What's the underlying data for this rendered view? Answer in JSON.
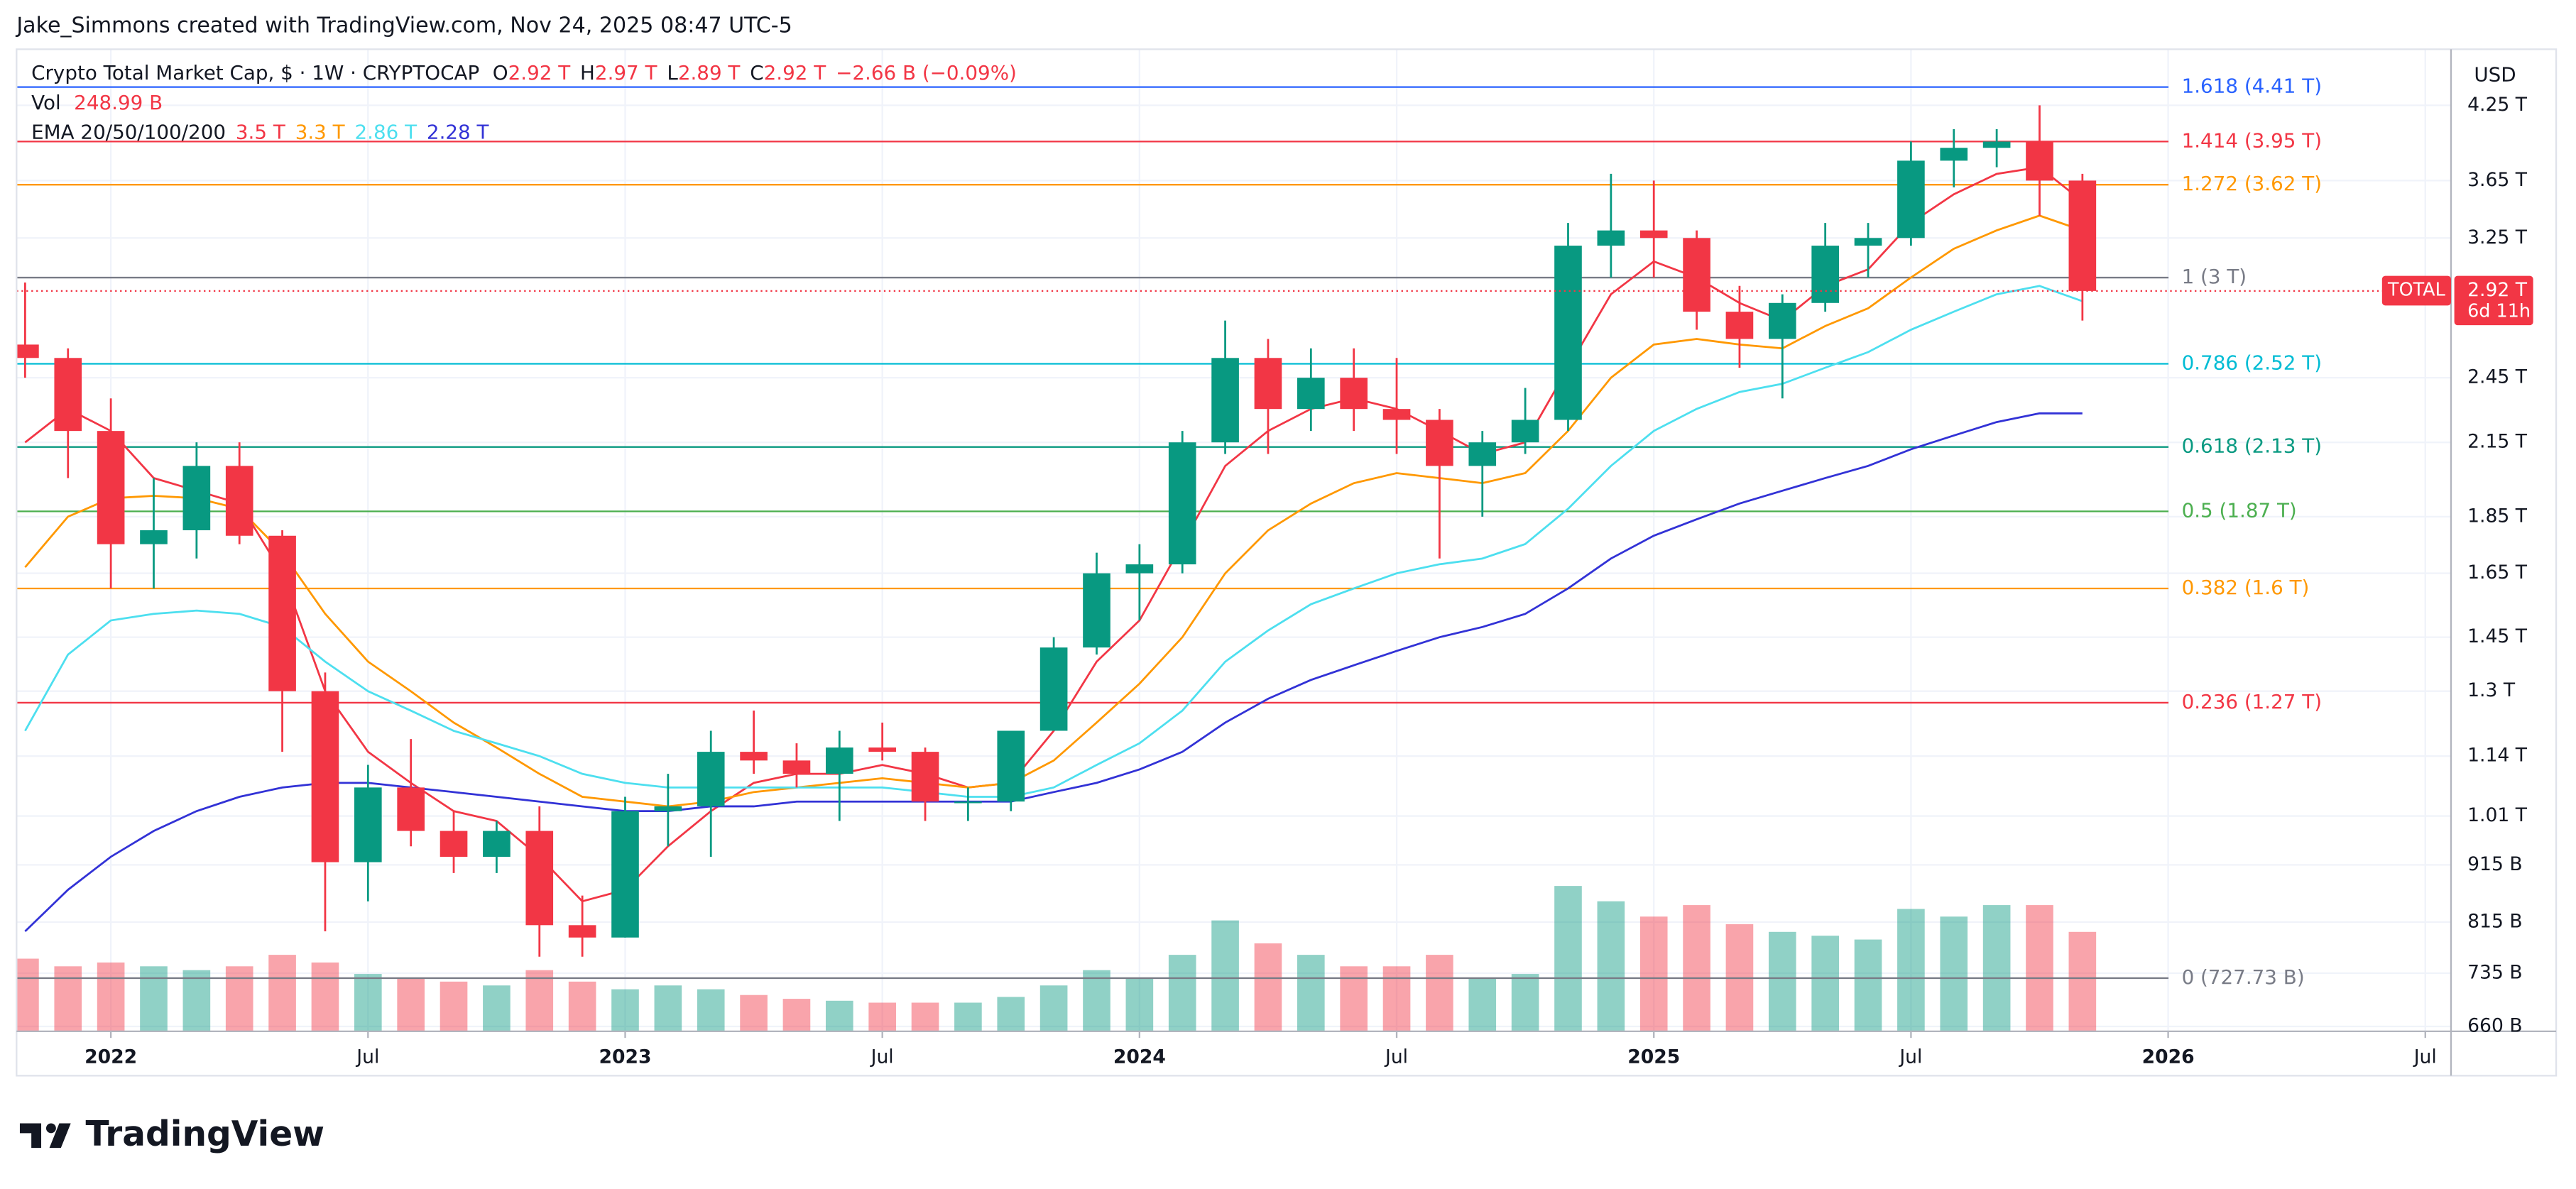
{
  "header": "Jake_Simmons created with TradingView.com, Nov 24, 2025 08:47 UTC-5",
  "legend": {
    "symbol": "Crypto Total Market Cap, $ · 1W · CRYPTOCAP",
    "ohlc": [
      {
        "key": "O",
        "value": "2.92 T"
      },
      {
        "key": "H",
        "value": "2.97 T"
      },
      {
        "key": "L",
        "value": "2.89 T"
      },
      {
        "key": "C",
        "value": "2.92 T"
      }
    ],
    "change": "−2.66 B (−0.09%)",
    "vol_label": "Vol",
    "vol": "248.99 B",
    "ema_label": "EMA 20/50/100/200",
    "ema_values": [
      "3.5 T",
      "3.3 T",
      "2.86 T",
      "2.28 T"
    ]
  },
  "currency": "USD",
  "price_tag": {
    "symbol": "TOTAL",
    "price": "2.92 T",
    "countdown": "6d 11h"
  },
  "brand": "TradingView",
  "chart_data": {
    "type": "candlestick",
    "log_scale": true,
    "grid": true,
    "up_color": "#089981",
    "down_color": "#f23645",
    "xlim": [
      -0.2,
      56.6
    ],
    "xticks": [
      {
        "value": 2,
        "label": "2022"
      },
      {
        "value": 8,
        "label": "Jul"
      },
      {
        "value": 14,
        "label": "2023"
      },
      {
        "value": 20,
        "label": "Jul"
      },
      {
        "value": 26,
        "label": "2024"
      },
      {
        "value": 32,
        "label": "Jul"
      },
      {
        "value": 38,
        "label": "2025"
      },
      {
        "value": 44,
        "label": "Jul"
      },
      {
        "value": 50,
        "label": "2026"
      },
      {
        "value": 56,
        "label": "Jul"
      }
    ],
    "ylim": [
      0.6535,
      4.76
    ],
    "yticks": [
      {
        "value": 0.66,
        "label": "660 B"
      },
      {
        "value": 0.735,
        "label": "735 B"
      },
      {
        "value": 0.815,
        "label": "815 B"
      },
      {
        "value": 0.915,
        "label": "915 B"
      },
      {
        "value": 1.01,
        "label": "1.01 T"
      },
      {
        "value": 1.14,
        "label": "1.14 T"
      },
      {
        "value": 1.3,
        "label": "1.3 T"
      },
      {
        "value": 1.45,
        "label": "1.45 T"
      },
      {
        "value": 1.65,
        "label": "1.65 T"
      },
      {
        "value": 1.85,
        "label": "1.85 T"
      },
      {
        "value": 2.15,
        "label": "2.15 T"
      },
      {
        "value": 2.45,
        "label": "2.45 T"
      },
      {
        "value": 3.25,
        "label": "3.25 T"
      },
      {
        "value": 3.65,
        "label": "3.65 T"
      },
      {
        "value": 4.25,
        "label": "4.25 T"
      }
    ],
    "open": [
      2.62,
      2.55,
      2.2,
      1.75,
      1.8,
      2.05,
      1.78,
      1.3,
      0.92,
      1.07,
      0.98,
      0.93,
      0.98,
      0.81,
      0.79,
      1.02,
      1.03,
      1.15,
      1.13,
      1.1,
      1.16,
      1.15,
      1.04,
      1.04,
      1.2,
      1.42,
      1.65,
      1.68,
      2.15,
      2.55,
      2.3,
      2.45,
      2.3,
      2.25,
      2.05,
      2.15,
      2.25,
      3.2,
      3.3,
      3.25,
      2.8,
      2.65,
      2.85,
      3.2,
      3.25,
      3.8,
      3.9,
      3.95,
      3.65
    ],
    "high": [
      2.97,
      2.6,
      2.35,
      2.0,
      2.15,
      2.15,
      1.8,
      1.35,
      1.12,
      1.18,
      1.02,
      1.0,
      1.03,
      0.86,
      1.05,
      1.1,
      1.2,
      1.25,
      1.17,
      1.2,
      1.22,
      1.16,
      1.07,
      1.2,
      1.45,
      1.72,
      1.75,
      2.2,
      2.75,
      2.65,
      2.6,
      2.6,
      2.55,
      2.3,
      2.2,
      2.4,
      3.35,
      3.7,
      3.65,
      3.3,
      2.95,
      2.9,
      3.35,
      3.35,
      3.95,
      4.05,
      4.05,
      4.25,
      3.7
    ],
    "low": [
      2.45,
      2.0,
      1.6,
      1.6,
      1.7,
      1.75,
      1.15,
      0.8,
      0.85,
      0.95,
      0.9,
      0.9,
      0.76,
      0.76,
      0.79,
      0.95,
      0.93,
      1.1,
      1.07,
      1.0,
      1.13,
      1.0,
      1.0,
      1.02,
      1.2,
      1.4,
      1.5,
      1.65,
      2.1,
      2.1,
      2.2,
      2.2,
      2.1,
      1.7,
      1.85,
      2.1,
      2.2,
      3.0,
      3.0,
      2.7,
      2.5,
      2.35,
      2.8,
      3.0,
      3.2,
      3.6,
      3.75,
      3.4,
      2.75
    ],
    "close": [
      2.55,
      2.2,
      1.75,
      1.8,
      2.05,
      1.78,
      1.3,
      0.92,
      1.07,
      0.98,
      0.93,
      0.98,
      0.81,
      0.79,
      1.02,
      1.03,
      1.15,
      1.13,
      1.1,
      1.16,
      1.15,
      1.04,
      1.04,
      1.2,
      1.42,
      1.65,
      1.68,
      2.15,
      2.55,
      2.3,
      2.45,
      2.3,
      2.25,
      2.05,
      2.15,
      2.25,
      3.2,
      3.3,
      3.25,
      2.8,
      2.65,
      2.85,
      3.2,
      3.25,
      3.8,
      3.9,
      3.95,
      3.65,
      2.92
    ],
    "volume": [
      190,
      170,
      180,
      170,
      160,
      170,
      200,
      180,
      150,
      140,
      130,
      120,
      160,
      130,
      110,
      120,
      110,
      95,
      85,
      80,
      75,
      75,
      75,
      90,
      120,
      160,
      140,
      200,
      290,
      230,
      200,
      170,
      170,
      200,
      140,
      150,
      380,
      340,
      300,
      330,
      280,
      260,
      250,
      240,
      320,
      300,
      330,
      330,
      260
    ],
    "overlays": [
      {
        "color": "#f23645",
        "values": [
          2.15,
          2.3,
          2.2,
          2.0,
          1.95,
          1.9,
          1.65,
          1.3,
          1.15,
          1.08,
          1.02,
          1.0,
          0.93,
          0.85,
          0.87,
          0.95,
          1.02,
          1.08,
          1.1,
          1.1,
          1.12,
          1.1,
          1.07,
          1.08,
          1.2,
          1.38,
          1.5,
          1.75,
          2.05,
          2.2,
          2.3,
          2.35,
          2.3,
          2.2,
          2.1,
          2.15,
          2.5,
          2.9,
          3.1,
          3.0,
          2.85,
          2.75,
          2.95,
          3.05,
          3.35,
          3.55,
          3.7,
          3.75,
          3.5
        ]
      },
      {
        "color": "#ff9800",
        "values": [
          1.67,
          1.85,
          1.92,
          1.93,
          1.92,
          1.88,
          1.72,
          1.52,
          1.38,
          1.3,
          1.22,
          1.16,
          1.1,
          1.05,
          1.04,
          1.03,
          1.04,
          1.06,
          1.07,
          1.08,
          1.09,
          1.08,
          1.07,
          1.08,
          1.13,
          1.22,
          1.32,
          1.45,
          1.65,
          1.8,
          1.9,
          1.98,
          2.02,
          2.0,
          1.98,
          2.02,
          2.2,
          2.45,
          2.62,
          2.65,
          2.62,
          2.6,
          2.72,
          2.82,
          3.0,
          3.18,
          3.3,
          3.4,
          3.3
        ]
      },
      {
        "color": "#4ddfef",
        "values": [
          1.2,
          1.4,
          1.5,
          1.52,
          1.53,
          1.52,
          1.48,
          1.38,
          1.3,
          1.25,
          1.2,
          1.17,
          1.14,
          1.1,
          1.08,
          1.07,
          1.07,
          1.07,
          1.07,
          1.07,
          1.07,
          1.06,
          1.05,
          1.05,
          1.07,
          1.12,
          1.17,
          1.25,
          1.38,
          1.47,
          1.55,
          1.6,
          1.65,
          1.68,
          1.7,
          1.75,
          1.88,
          2.05,
          2.2,
          2.3,
          2.38,
          2.42,
          2.5,
          2.58,
          2.7,
          2.8,
          2.9,
          2.95,
          2.86
        ]
      },
      {
        "color": "#3232d6",
        "values": [
          0.8,
          0.87,
          0.93,
          0.98,
          1.02,
          1.05,
          1.07,
          1.08,
          1.08,
          1.07,
          1.06,
          1.05,
          1.04,
          1.03,
          1.02,
          1.02,
          1.03,
          1.03,
          1.04,
          1.04,
          1.04,
          1.04,
          1.04,
          1.04,
          1.06,
          1.08,
          1.11,
          1.15,
          1.22,
          1.28,
          1.33,
          1.37,
          1.41,
          1.45,
          1.48,
          1.52,
          1.6,
          1.7,
          1.78,
          1.84,
          1.9,
          1.95,
          2.0,
          2.05,
          2.12,
          2.18,
          2.24,
          2.28,
          2.28
        ]
      }
    ],
    "fib_levels": [
      {
        "value": 4.41,
        "label": "1.618 (4.41 T)",
        "color": "#2962ff"
      },
      {
        "value": 3.95,
        "label": "1.414 (3.95 T)",
        "color": "#f23645"
      },
      {
        "value": 3.62,
        "label": "1.272 (3.62 T)",
        "color": "#ff9800"
      },
      {
        "value": 3,
        "label": "1 (3 T)",
        "color": "#787b86"
      },
      {
        "value": 2.52,
        "label": "0.786 (2.52 T)",
        "color": "#00bcd4"
      },
      {
        "value": 2.13,
        "label": "0.618 (2.13 T)",
        "color": "#089981"
      },
      {
        "value": 1.87,
        "label": "0.5 (1.87 T)",
        "color": "#4caf50"
      },
      {
        "value": 1.6,
        "label": "0.382 (1.6 T)",
        "color": "#ff9800"
      },
      {
        "value": 1.27,
        "label": "0.236 (1.27 T)",
        "color": "#f23645"
      },
      {
        "value": 0.72773,
        "label": "0 (727.73 B)",
        "color": "#787b86"
      }
    ]
  }
}
